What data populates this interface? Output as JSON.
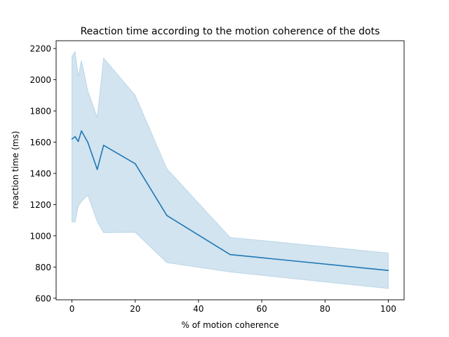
{
  "chart_data": {
    "type": "line",
    "title": "Reaction time according to the motion coherence of the dots",
    "xlabel": "% of motion coherence",
    "ylabel": "reaction time (ms)",
    "xlim": [
      -5,
      105
    ],
    "ylim": [
      590,
      2250
    ],
    "xticks": [
      0,
      20,
      40,
      60,
      80,
      100
    ],
    "yticks": [
      600,
      800,
      1000,
      1200,
      1400,
      1600,
      1800,
      2000,
      2200
    ],
    "grid": false,
    "legend": "none",
    "series": [
      {
        "color": "#1f77b4",
        "x": [
          0,
          1,
          2,
          3,
          5,
          8,
          10,
          20,
          30,
          50,
          100
        ],
        "y": [
          1620,
          1635,
          1605,
          1672,
          1600,
          1425,
          1580,
          1462,
          1130,
          880,
          778
        ],
        "ci_lower": [
          1090,
          1088,
          1190,
          1220,
          1260,
          1090,
          1020,
          1022,
          828,
          768,
          662
        ],
        "ci_upper": [
          2150,
          2180,
          2020,
          2125,
          1930,
          1760,
          2140,
          1900,
          1430,
          990,
          890
        ]
      }
    ]
  }
}
